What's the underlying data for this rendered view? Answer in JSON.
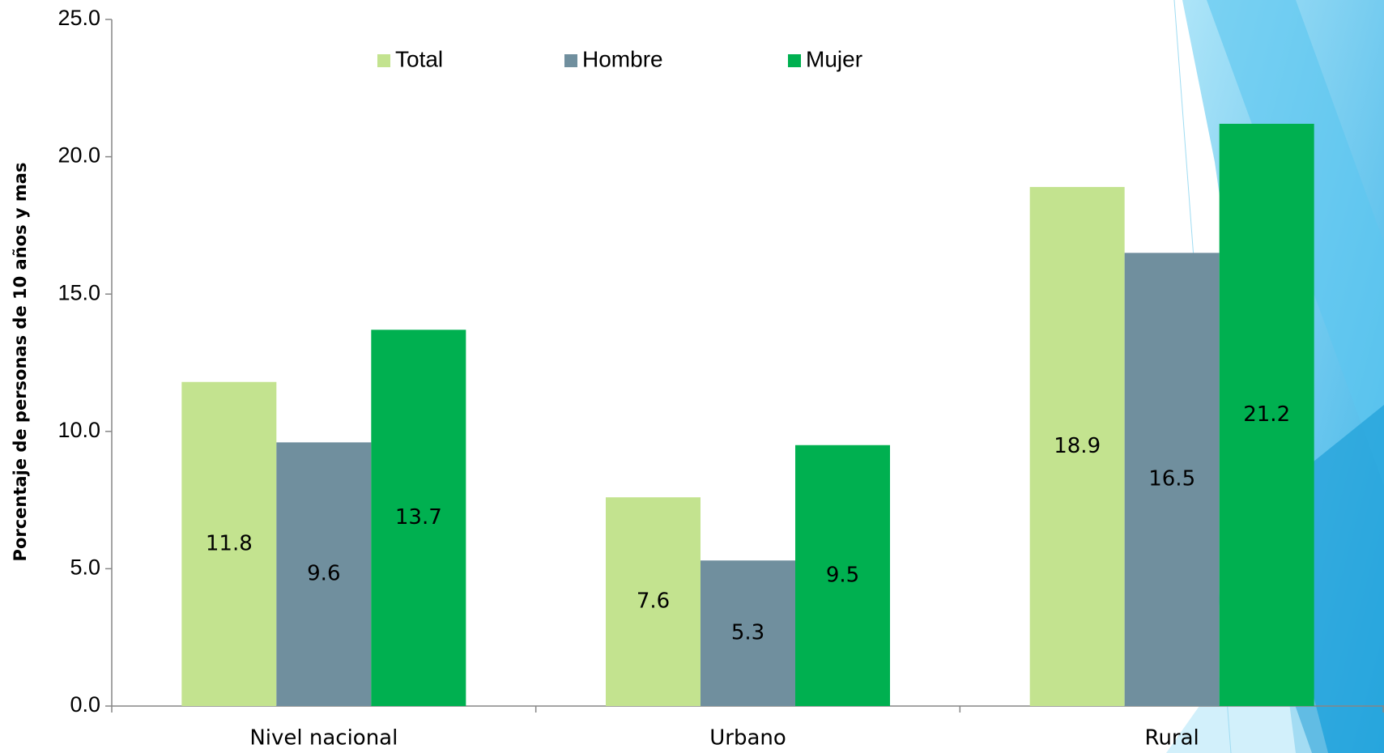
{
  "chart_data": {
    "type": "bar",
    "ylabel": "Porcentaje de personas de 10 años y mas",
    "categories": [
      "Nivel nacional",
      "Urbano",
      "Rural"
    ],
    "series": [
      {
        "name": "Total",
        "color": "#c3e38f",
        "values": [
          11.8,
          7.6,
          18.9
        ]
      },
      {
        "name": "Hombre",
        "color": "#708f9e",
        "values": [
          9.6,
          5.3,
          16.5
        ]
      },
      {
        "name": "Mujer",
        "color": "#00b050",
        "values": [
          13.7,
          9.5,
          21.2
        ]
      }
    ],
    "ylim": [
      0,
      25
    ],
    "yticks": [
      {
        "value": 0,
        "label": "0.0"
      },
      {
        "value": 5,
        "label": "5.0"
      },
      {
        "value": 10,
        "label": "10.0"
      },
      {
        "value": 15,
        "label": "15.0"
      },
      {
        "value": 20,
        "label": "20.0"
      },
      {
        "value": 25,
        "label": "25.0"
      }
    ],
    "legend": "top",
    "grid": false
  }
}
